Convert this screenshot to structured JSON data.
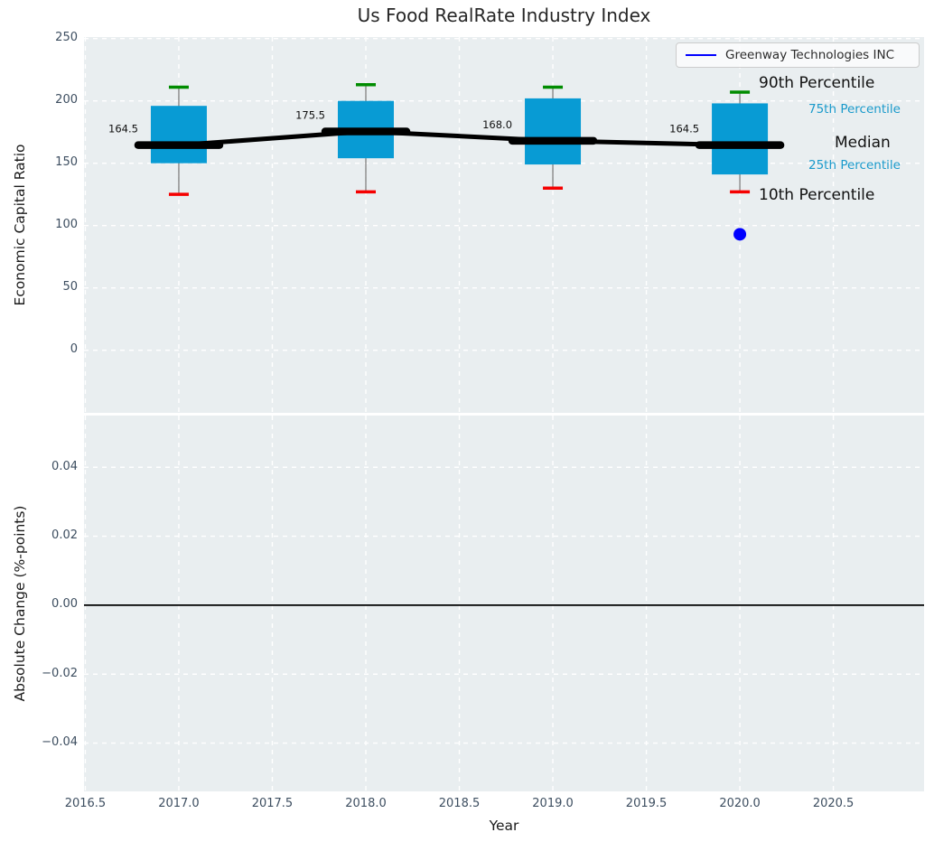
{
  "title": "Us Food RealRate Industry Index",
  "legend": {
    "label": "Greenway Technologies INC",
    "line_color": "#0000ff"
  },
  "annotations": {
    "p90": "90th Percentile",
    "p75": "75th Percentile",
    "median": "Median",
    "p25": "25th Percentile",
    "p10": "10th Percentile"
  },
  "colors": {
    "axes_background": "#e9eef0",
    "grid": "#ffffff",
    "box_fill": "#089bd4",
    "whisker": "#7f7f7f",
    "cap_top_green": "#008c00",
    "cap_bottom_red": "#f50000",
    "median_line": "#000000",
    "company_point": "#0000ff",
    "tick_text": "#3d4e60",
    "percentile_small_text": "#1a9acb",
    "zero_line": "#000000"
  },
  "chart_data": [
    {
      "type": "boxplot",
      "title": "Us Food RealRate Industry Index",
      "xlabel": "Year",
      "ylabel": "Economic Capital Ratio",
      "grid": true,
      "legend_position": "upper right",
      "xlim": [
        2016.49,
        2020.99
      ],
      "ylim": [
        -50,
        251
      ],
      "xticks": {
        "values": [
          2016.5,
          2017.0,
          2017.5,
          2018.0,
          2018.5,
          2019.0,
          2019.5,
          2020.0,
          2020.5
        ],
        "labels": [
          "2016.5",
          "2017.0",
          "2017.5",
          "2018.0",
          "2018.5",
          "2019.0",
          "2019.5",
          "2020.0",
          "2020.5"
        ]
      },
      "yticks": {
        "values": [
          0,
          50,
          100,
          150,
          200,
          250
        ],
        "labels": [
          "0",
          "50",
          "100",
          "150",
          "200",
          "250"
        ]
      },
      "boxes": [
        {
          "year": 2017,
          "p10": 125,
          "p25": 150,
          "median": 164.5,
          "p75": 196,
          "p90": 211,
          "label": "164.5"
        },
        {
          "year": 2018,
          "p10": 127,
          "p25": 154,
          "median": 175.5,
          "p75": 200,
          "p90": 213,
          "label": "175.5"
        },
        {
          "year": 2019,
          "p10": 130,
          "p25": 149,
          "median": 168.0,
          "p75": 202,
          "p90": 211,
          "label": "168.0"
        },
        {
          "year": 2020,
          "p10": 127,
          "p25": 141,
          "median": 164.5,
          "p75": 198,
          "p90": 207,
          "label": "164.5"
        }
      ],
      "median_series": {
        "x": [
          2017,
          2018,
          2019,
          2020
        ],
        "values": [
          164.5,
          175.5,
          168.0,
          164.5
        ]
      },
      "company_point": {
        "name": "Greenway Technologies INC",
        "x": 2020,
        "value": 93
      }
    },
    {
      "type": "line",
      "xlabel": "Year",
      "ylabel": "Absolute Change (%-points)",
      "grid": true,
      "xlim": [
        2016.49,
        2020.99
      ],
      "ylim": [
        -0.054,
        0.055
      ],
      "xticks": {
        "values": [
          2016.5,
          2017.0,
          2017.5,
          2018.0,
          2018.5,
          2019.0,
          2019.5,
          2020.0,
          2020.5
        ],
        "labels": [
          "2016.5",
          "2017.0",
          "2017.5",
          "2018.0",
          "2018.5",
          "2019.0",
          "2019.5",
          "2020.0",
          "2020.5"
        ]
      },
      "yticks": {
        "values": [
          0.04,
          0.02,
          0.0,
          -0.02,
          -0.04
        ],
        "labels": [
          "0.04",
          "0.02",
          "0.00",
          "−0.02",
          "−0.04"
        ]
      },
      "series": [],
      "zero_line": 0.0
    }
  ]
}
